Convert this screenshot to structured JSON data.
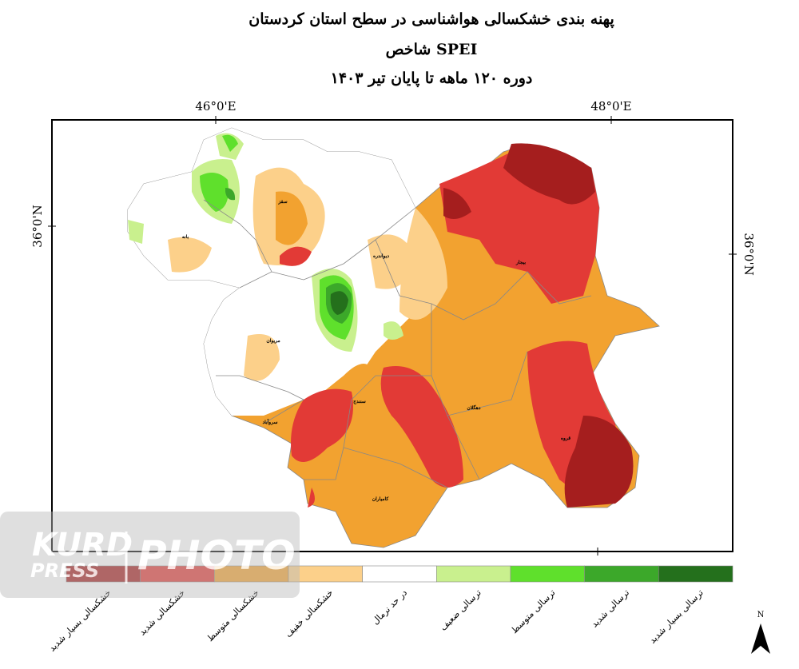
{
  "title": "پهنه بندی خشکسالی هواشناسی در سطح استان کردستان",
  "subtitle": "شاخص SPEI",
  "period": "دوره ۱۲۰ ماهه تا پایان تیر ۱۴۰۳",
  "axis_labels": {
    "top_left": "46°0'E",
    "top_right": "48°0'E",
    "left": "36°0'N",
    "right": "36°0'N"
  },
  "cities": [
    "بانه",
    "سقز",
    "دیواندره",
    "بیجار",
    "مریوان",
    "سنندج",
    "دهگلان",
    "سروآباد",
    "قروه",
    "کامیاران"
  ],
  "legend": [
    {
      "name": "خشکسالی بسیار شدید",
      "color": "#a51e1e"
    },
    {
      "name": "خشکسالی شدید",
      "color": "#e23a36"
    },
    {
      "name": "خشکسالی متوسط",
      "color": "#f2a230"
    },
    {
      "name": "خشکسالی خفیف",
      "color": "#fcd08a"
    },
    {
      "name": "در حد نرمال",
      "color": "#ffffff"
    },
    {
      "name": "ترسالی ضعیف",
      "color": "#c9f08e"
    },
    {
      "name": "ترسالی متوسط",
      "color": "#5fe02c"
    },
    {
      "name": "ترسالی شدید",
      "color": "#3ca82a"
    },
    {
      "name": "ترسالی بسیار شدید",
      "color": "#24701c"
    }
  ],
  "watermark": {
    "line1": "KURD",
    "line2": "PRESS",
    "line3": "PHOTO"
  },
  "north": "N"
}
